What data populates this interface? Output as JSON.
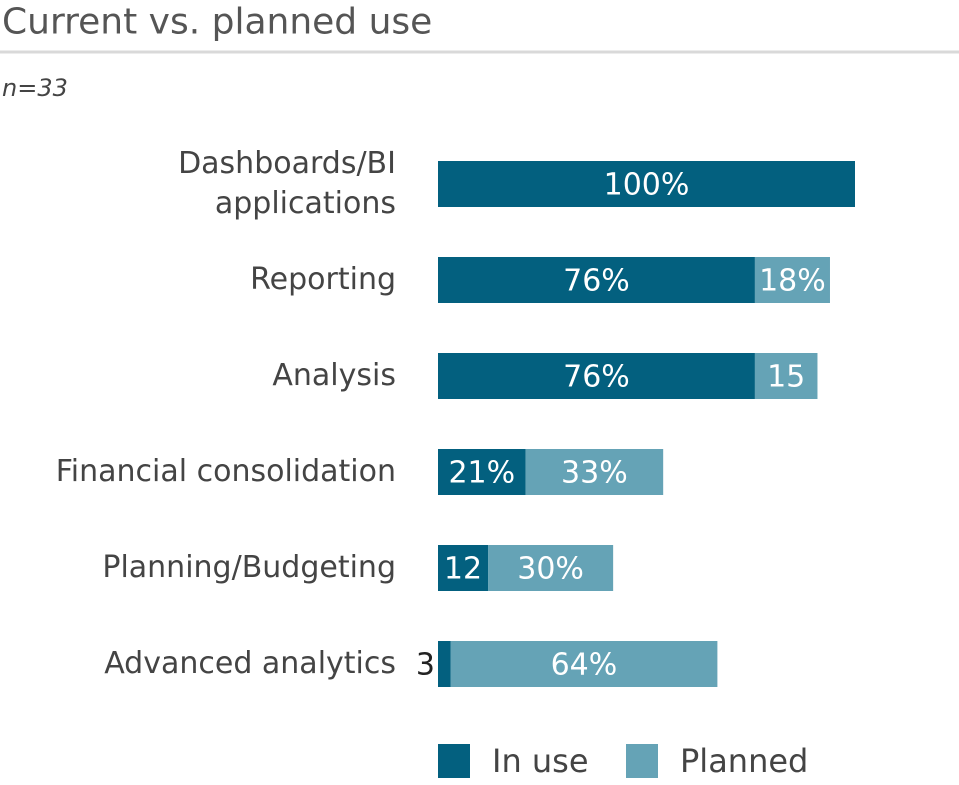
{
  "chart_data": {
    "type": "stacked-bar-horizontal",
    "title": "Current vs. planned use",
    "subtitle": "n=33",
    "categories": [
      "Dashboards/BI applications",
      "Reporting",
      "Analysis",
      "Financial consolidation",
      "Planning/Budgeting",
      "Advanced analytics"
    ],
    "series": [
      {
        "name": "In use",
        "color": "#03607f",
        "values": [
          100,
          76,
          76,
          21,
          12,
          3
        ],
        "value_labels": [
          "100%",
          "76%",
          "76%",
          "21%",
          "12",
          "3"
        ]
      },
      {
        "name": "Planned",
        "color": "#65a3b6",
        "values": [
          null,
          18,
          15,
          33,
          30,
          64
        ],
        "value_labels": [
          null,
          "18%",
          "15",
          "33%",
          "30%",
          "64%"
        ]
      }
    ]
  }
}
